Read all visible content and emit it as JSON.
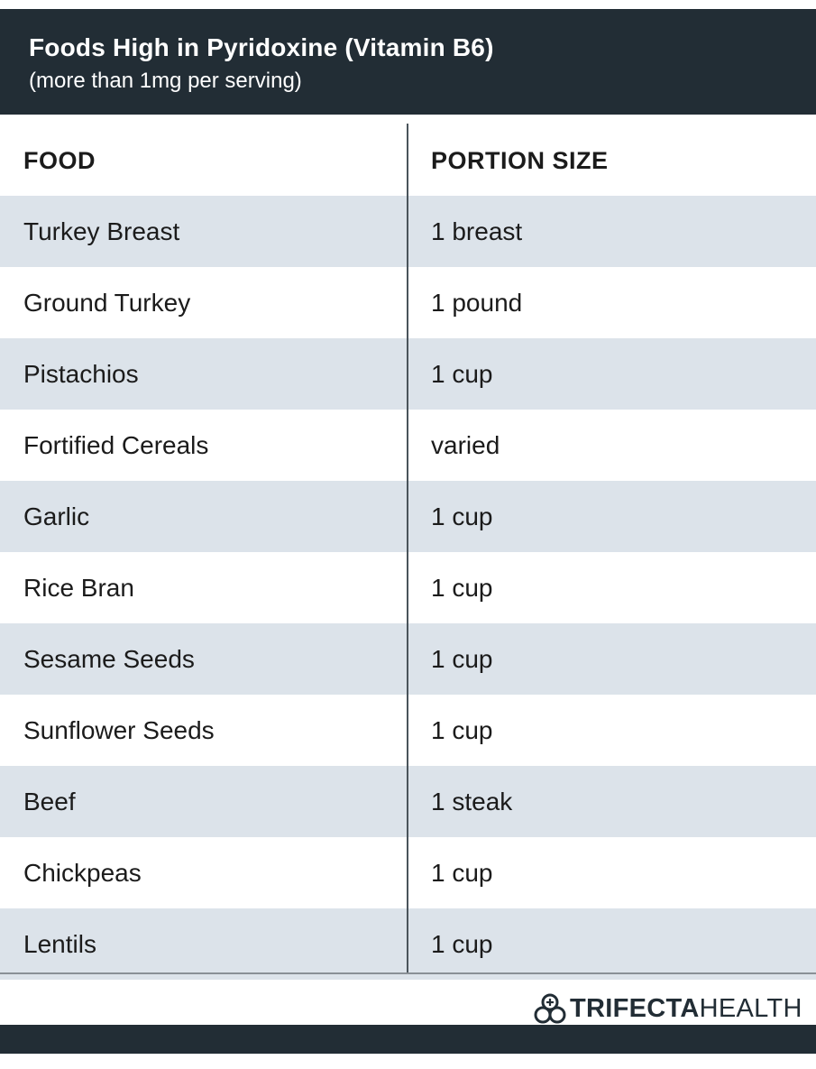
{
  "header": {
    "title": "Foods High in Pyridoxine (Vitamin B6)",
    "subtitle": "(more than 1mg per serving)"
  },
  "table": {
    "columns": [
      "FOOD",
      "PORTION SIZE"
    ],
    "rows": [
      {
        "food": "Turkey Breast",
        "portion": "1 breast"
      },
      {
        "food": "Ground Turkey",
        "portion": "1 pound"
      },
      {
        "food": "Pistachios",
        "portion": "1 cup"
      },
      {
        "food": "Fortified Cereals",
        "portion": "varied"
      },
      {
        "food": "Garlic",
        "portion": "1 cup"
      },
      {
        "food": "Rice Bran",
        "portion": "1 cup"
      },
      {
        "food": "Sesame Seeds",
        "portion": "1 cup"
      },
      {
        "food": "Sunflower Seeds",
        "portion": "1 cup"
      },
      {
        "food": "Beef",
        "portion": "1 steak"
      },
      {
        "food": "Chickpeas",
        "portion": "1 cup"
      },
      {
        "food": "Lentils",
        "portion": "1 cup"
      }
    ]
  },
  "brand": {
    "icon": "trifecta-logo-icon",
    "name_strong": "TRIFECTA",
    "name_light": "HEALTH"
  },
  "colors": {
    "header_bg": "#222d35",
    "row_shade": "#dce3ea"
  }
}
